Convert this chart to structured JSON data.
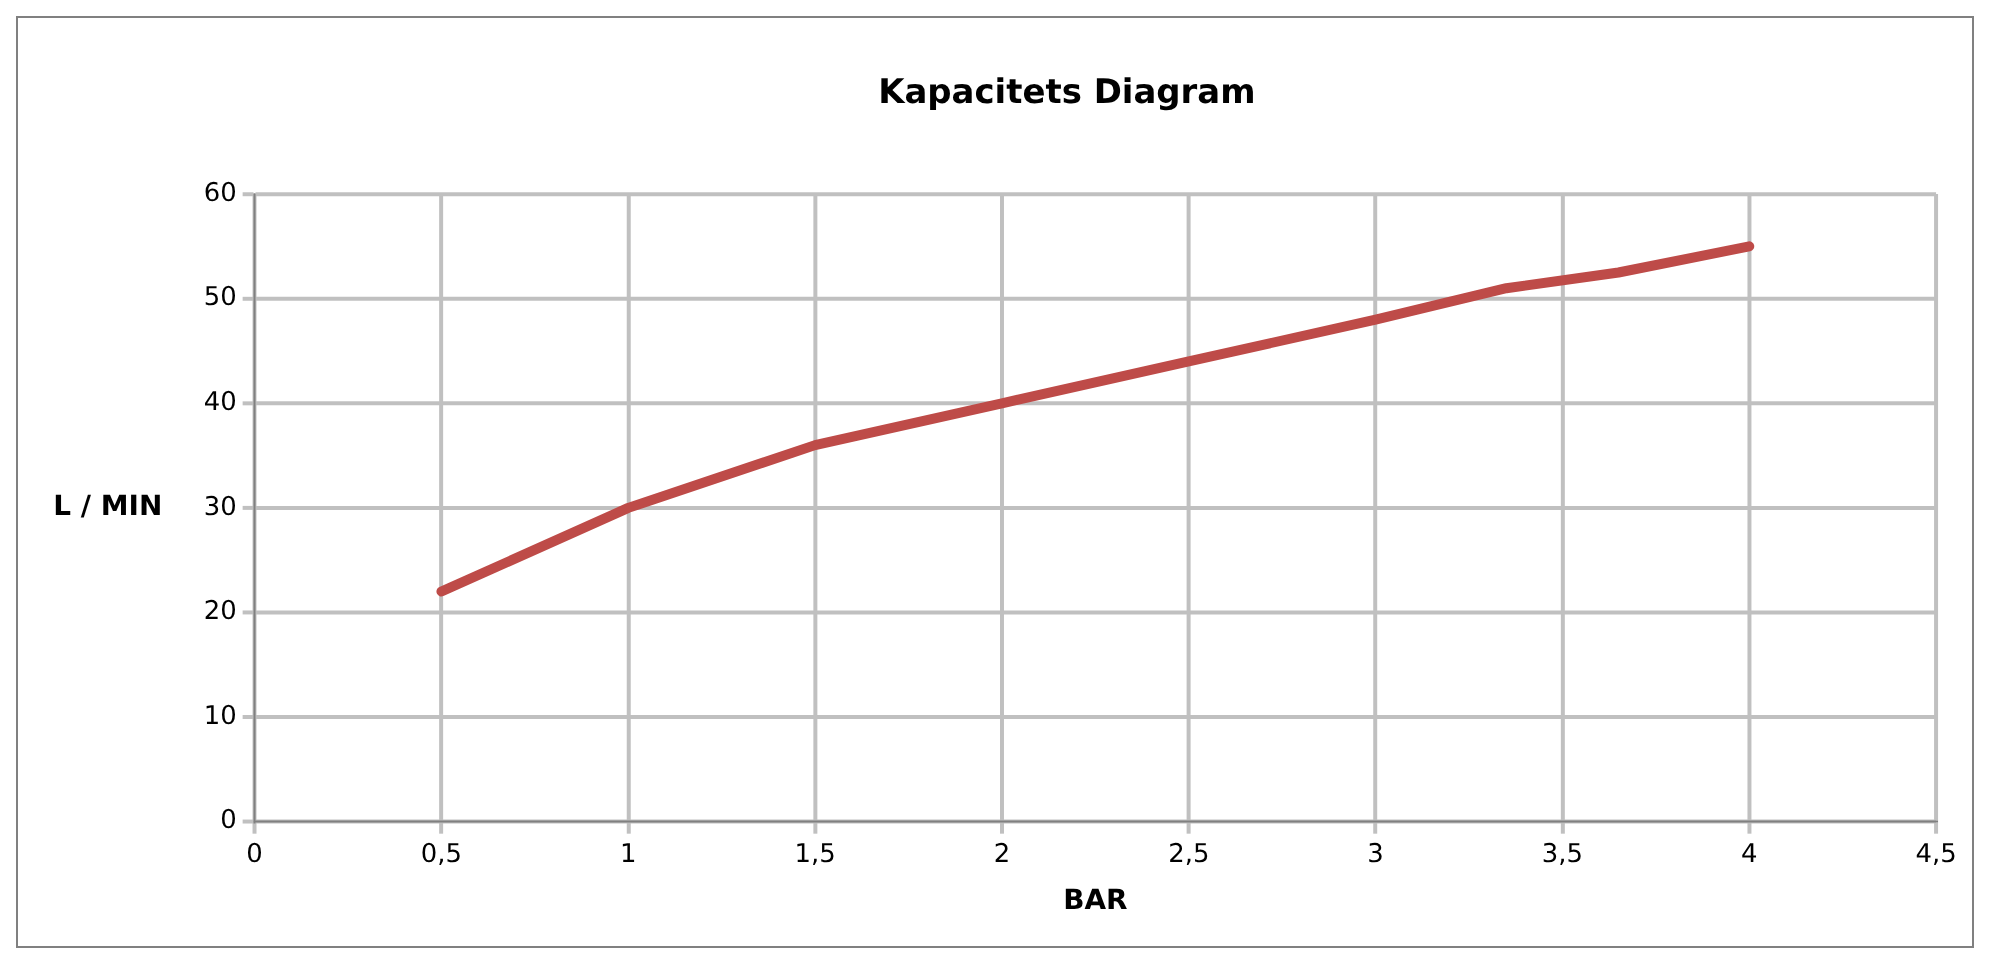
{
  "chart_data": {
    "type": "line",
    "title": "Kapacitets Diagram",
    "xlabel": "BAR",
    "ylabel": "L / MIN",
    "x": [
      0.5,
      1,
      1.5,
      2,
      2.5,
      3,
      3.35,
      3.65,
      4
    ],
    "series": [
      {
        "color": "#be4b48",
        "values": [
          22,
          30,
          36,
          40,
          44,
          48,
          51,
          52.5,
          55
        ]
      }
    ],
    "xlim": [
      0,
      4.5
    ],
    "xticks": [
      0,
      {
        "value": 0.5,
        "label": "0,5"
      },
      1,
      {
        "value": 1.5,
        "label": "1,5"
      },
      2,
      {
        "value": 2.5,
        "label": "2,5"
      },
      3,
      {
        "value": 3.5,
        "label": "3,5"
      },
      4,
      {
        "value": 4.5,
        "label": "4,5"
      }
    ],
    "ylim": [
      0,
      60
    ],
    "yticks": [
      0,
      10,
      20,
      30,
      40,
      50,
      60
    ],
    "grid": true,
    "legend": false,
    "marker": "none",
    "line_style": "solid"
  }
}
